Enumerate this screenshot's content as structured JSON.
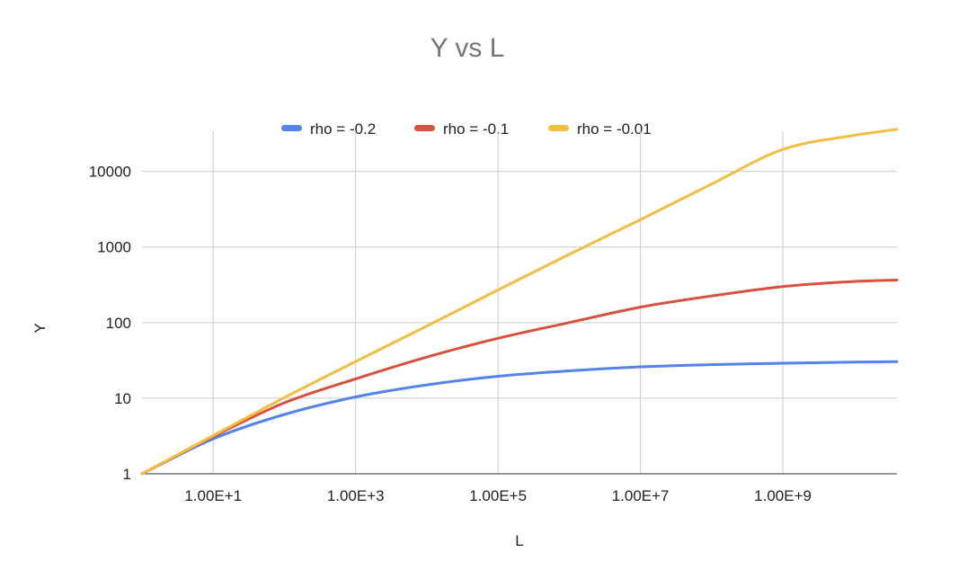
{
  "chart_data": {
    "type": "line",
    "title": "Y vs L",
    "xlabel": "L",
    "ylabel": "Y",
    "x_scale": "log",
    "y_scale": "log",
    "xlim": [
      1,
      40000000000
    ],
    "ylim": [
      1,
      40000
    ],
    "grid": true,
    "legend_position": "top",
    "x_ticks": [
      {
        "value": 10,
        "label": "1.00E+1"
      },
      {
        "value": 1000,
        "label": "1.00E+3"
      },
      {
        "value": 100000,
        "label": "1.00E+5"
      },
      {
        "value": 10000000,
        "label": "1.00E+7"
      },
      {
        "value": 1000000000,
        "label": "1.00E+9"
      }
    ],
    "y_ticks": [
      {
        "value": 1,
        "label": "1"
      },
      {
        "value": 10,
        "label": "10"
      },
      {
        "value": 100,
        "label": "100"
      },
      {
        "value": 1000,
        "label": "1000"
      },
      {
        "value": 10000,
        "label": "10000"
      }
    ],
    "x": [
      1,
      10,
      100,
      1000,
      10000,
      100000,
      1000000,
      10000000,
      100000000,
      1000000000,
      10000000000,
      40000000000
    ],
    "series": [
      {
        "name": "rho = -0.2",
        "color": "#5383ec",
        "values": [
          1,
          2.9,
          6.1,
          10.4,
          15.0,
          19.5,
          23.0,
          26.0,
          27.8,
          29.0,
          30.0,
          30.5
        ]
      },
      {
        "name": "rho = -0.1",
        "color": "#d85140",
        "values": [
          1,
          3.1,
          8.7,
          18.0,
          35.0,
          62.0,
          100,
          160,
          225,
          300,
          350,
          365
        ]
      },
      {
        "name": "rho = -0.01",
        "color": "#f2be42",
        "values": [
          1,
          3.2,
          10.2,
          30.5,
          90,
          270,
          800,
          2300,
          6800,
          19500,
          30000,
          36000
        ]
      }
    ]
  }
}
